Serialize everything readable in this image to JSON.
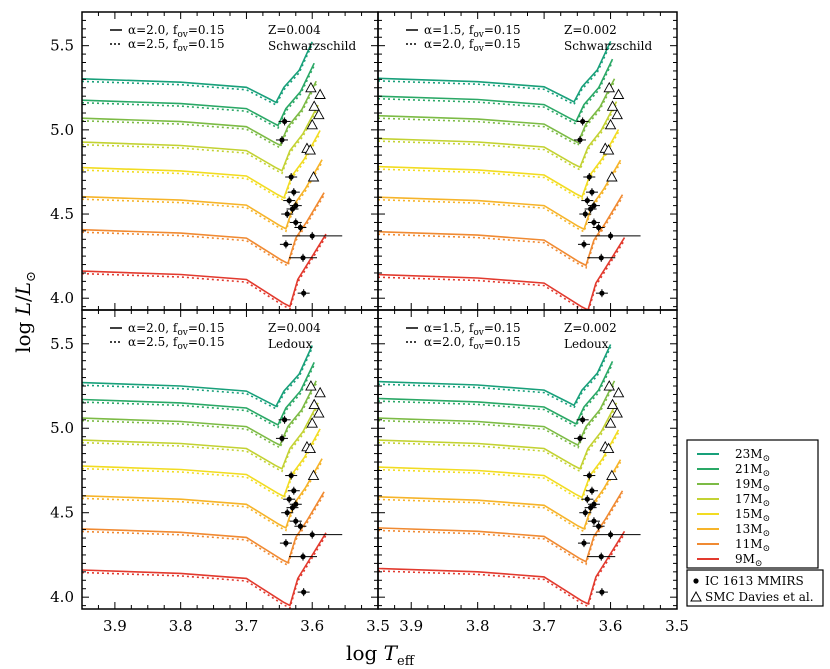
{
  "chart_data": {
    "type": "line",
    "xlabel": "log T_eff",
    "ylabel": "log L/L_⊙",
    "xlim": [
      3.95,
      3.5
    ],
    "ylim": [
      3.93,
      5.7
    ],
    "x_ticks": [
      "3.9",
      "3.8",
      "3.7",
      "3.6",
      "3.5"
    ],
    "y_ticks": [
      "4.0",
      "4.5",
      "5.0",
      "5.5"
    ],
    "masses": [
      {
        "label": "23M",
        "color": "#18a07a",
        "ms_L": 5.3
      },
      {
        "label": "21M",
        "color": "#2aa866",
        "ms_L": 5.2
      },
      {
        "label": "19M",
        "color": "#7cbb45",
        "ms_L": 5.09
      },
      {
        "label": "17M",
        "color": "#c3d233",
        "ms_L": 4.96
      },
      {
        "label": "15M",
        "color": "#f2dc22",
        "ms_L": 4.8
      },
      {
        "label": "13M",
        "color": "#f6b42a",
        "ms_L": 4.63
      },
      {
        "label": "11M",
        "color": "#f08a32",
        "ms_L": 4.44
      },
      {
        "label": "9M",
        "color": "#e23a2e",
        "ms_L": 4.2
      }
    ],
    "panels": [
      {
        "id": "top-left",
        "z_label": "Z=0.004",
        "conv_label": "Schwarzschild",
        "line_solid": "α=2.0, f",
        "line_solid_sub": "ov",
        "line_solid_val": "=0.15",
        "line_dotted": "α=2.5, f",
        "line_dotted_sub": "ov",
        "line_dotted_val": "=0.15",
        "ms_offsets": [
          0.01,
          -0.08,
          -0.07,
          -0.11,
          -0.08,
          -0.09,
          -0.11,
          -0.13
        ]
      },
      {
        "id": "top-right",
        "z_label": "Z=0.002",
        "conv_label": "Schwarzschild",
        "line_solid": "α=1.5, f",
        "line_solid_sub": "ov",
        "line_solid_val": "=0.15",
        "line_dotted": "α=2.0, f",
        "line_dotted_sub": "ov",
        "line_dotted_val": "=0.15",
        "ms_offsets": [
          0.02,
          0.0,
          -0.02,
          -0.04,
          -0.06,
          -0.1,
          -0.15,
          -0.2
        ]
      },
      {
        "id": "bottom-left",
        "z_label": "Z=0.004",
        "conv_label": "Ledoux",
        "line_solid": "α=2.0, f",
        "line_solid_sub": "ov",
        "line_solid_val": "=0.15",
        "line_dotted": "α=2.5, f",
        "line_dotted_sub": "ov",
        "line_dotted_val": "=0.15",
        "ms_offsets": [
          -0.1,
          -0.1,
          -0.1,
          -0.1,
          -0.08,
          -0.1,
          -0.12,
          -0.13
        ]
      },
      {
        "id": "bottom-right",
        "z_label": "Z=0.002",
        "conv_label": "Ledoux",
        "line_solid": "α=1.5, f",
        "line_solid_sub": "ov",
        "line_solid_val": "=0.15",
        "line_dotted": "α=2.0, f",
        "line_dotted_sub": "ov",
        "line_dotted_val": "=0.15",
        "ms_offsets": [
          -0.08,
          -0.08,
          -0.1,
          -0.1,
          -0.1,
          -0.12,
          -0.1,
          -0.1
        ]
      }
    ],
    "mmirs_points": [
      {
        "x": 3.642,
        "y": 5.05
      },
      {
        "x": 3.646,
        "y": 4.94
      },
      {
        "x": 3.632,
        "y": 4.72
      },
      {
        "x": 3.628,
        "y": 4.63
      },
      {
        "x": 3.635,
        "y": 4.58
      },
      {
        "x": 3.625,
        "y": 4.55
      },
      {
        "x": 3.63,
        "y": 4.53
      },
      {
        "x": 3.638,
        "y": 4.5
      },
      {
        "x": 3.625,
        "y": 4.45
      },
      {
        "x": 3.618,
        "y": 4.42
      },
      {
        "x": 3.64,
        "y": 4.32
      },
      {
        "x": 3.6,
        "y": 4.37
      },
      {
        "x": 3.614,
        "y": 4.24
      },
      {
        "x": 3.613,
        "y": 4.03
      }
    ],
    "smc_points": [
      {
        "x": 3.602,
        "y": 5.25
      },
      {
        "x": 3.588,
        "y": 5.21
      },
      {
        "x": 3.597,
        "y": 5.14
      },
      {
        "x": 3.59,
        "y": 5.09
      },
      {
        "x": 3.6,
        "y": 5.03
      },
      {
        "x": 3.608,
        "y": 4.89
      },
      {
        "x": 3.603,
        "y": 4.88
      },
      {
        "x": 3.598,
        "y": 4.72
      }
    ],
    "legend": {
      "masses_unit": "⊙",
      "observations": [
        {
          "label": "IC 1613 MMIRS",
          "marker": "dot"
        },
        {
          "label": "SMC Davies et al.",
          "marker": "triangle"
        }
      ]
    }
  }
}
